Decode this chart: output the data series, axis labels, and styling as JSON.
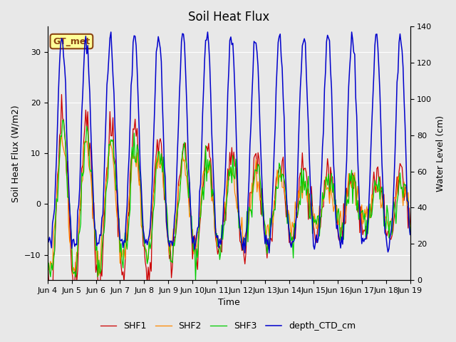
{
  "title": "Soil Heat Flux",
  "ylabel_left": "Soil Heat Flux (W/m2)",
  "ylabel_right": "Water Level (cm)",
  "xlabel": "Time",
  "ylim_left": [
    -15,
    35
  ],
  "ylim_right": [
    0,
    140
  ],
  "bg_color": "#e8e8e8",
  "grid_color": "#ffffff",
  "annotation_text": "GT_met",
  "annotation_bg": "#ffff99",
  "annotation_border": "#8B4513",
  "colors": {
    "SHF1": "#cc0000",
    "SHF2": "#ff8800",
    "SHF3": "#00cc00",
    "depth_CTD_cm": "#0000cc"
  },
  "legend_labels": [
    "SHF1",
    "SHF2",
    "SHF3",
    "depth_CTD_cm"
  ],
  "title_fontsize": 12,
  "label_fontsize": 9,
  "tick_fontsize": 8,
  "legend_fontsize": 9
}
